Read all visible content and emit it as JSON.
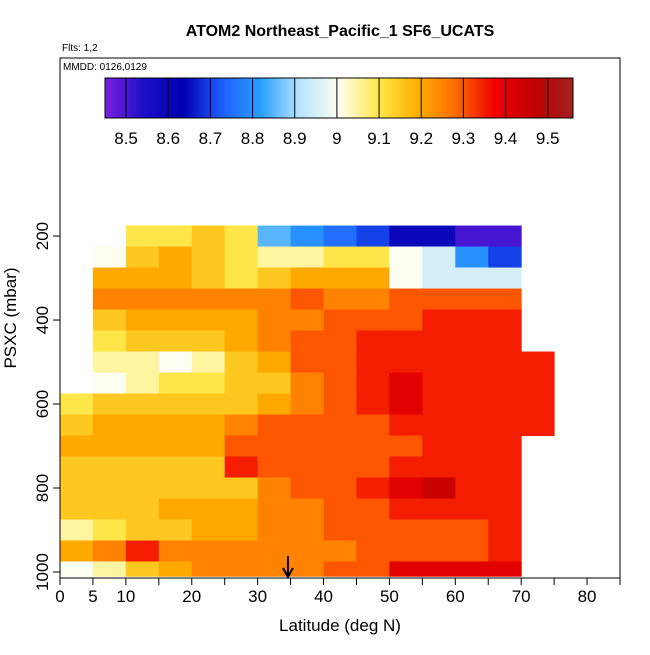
{
  "chart_data": {
    "type": "heatmap",
    "title": "ATOM2 Northeast_Pacific_1 SF6_UCATS",
    "flights": "Flts: 1,2",
    "dates": "MMDD: 0126,0129",
    "xlabel": "Latitude (deg N)",
    "ylabel": "PSXC (mbar)",
    "xlim": [
      0,
      85
    ],
    "xticks": [
      0,
      5,
      10,
      20,
      30,
      40,
      50,
      60,
      70,
      80
    ],
    "xminor_ticks": [
      15,
      25,
      35,
      45,
      55,
      65,
      75,
      85
    ],
    "ylim": [
      1014.3,
      -224
    ],
    "yticks": [
      200,
      400,
      600,
      800,
      1000
    ],
    "x_edges": [
      0,
      5,
      10,
      15,
      20,
      25,
      30,
      35,
      40,
      45,
      50,
      55,
      60,
      65,
      70,
      75
    ],
    "y_edges": [
      175,
      225,
      275,
      325,
      375,
      425,
      475,
      525,
      575,
      625,
      675,
      725,
      775,
      825,
      875,
      925,
      975,
      1010
    ],
    "z": [
      [
        null,
        null,
        9.1,
        9.1,
        9.15,
        9.1,
        8.85,
        8.8,
        8.75,
        8.7,
        8.6,
        8.6,
        8.5,
        8.5,
        null
      ],
      [
        null,
        9.0,
        9.15,
        9.2,
        9.15,
        9.1,
        9.05,
        9.05,
        9.1,
        9.1,
        9.0,
        8.95,
        8.8,
        8.7,
        null
      ],
      [
        null,
        9.2,
        9.2,
        9.2,
        9.15,
        9.1,
        9.15,
        9.2,
        9.2,
        9.2,
        9.0,
        8.95,
        8.95,
        8.95,
        null
      ],
      [
        null,
        9.25,
        9.25,
        9.25,
        9.25,
        9.25,
        9.25,
        9.3,
        9.25,
        9.25,
        9.3,
        9.3,
        9.3,
        9.3,
        null
      ],
      [
        null,
        9.15,
        9.2,
        9.2,
        9.2,
        9.2,
        9.25,
        9.25,
        9.3,
        9.3,
        9.3,
        9.35,
        9.35,
        9.35,
        null
      ],
      [
        null,
        9.1,
        9.15,
        9.15,
        9.15,
        9.2,
        9.25,
        9.3,
        9.3,
        9.35,
        9.35,
        9.35,
        9.35,
        9.35,
        null
      ],
      [
        null,
        9.05,
        9.05,
        9.0,
        9.05,
        9.15,
        9.2,
        9.3,
        9.3,
        9.35,
        9.35,
        9.35,
        9.35,
        9.35,
        9.35
      ],
      [
        null,
        9.0,
        9.05,
        9.1,
        9.1,
        9.15,
        9.15,
        9.25,
        9.3,
        9.35,
        9.4,
        9.35,
        9.35,
        9.35,
        9.35
      ],
      [
        9.1,
        9.15,
        9.15,
        9.15,
        9.15,
        9.15,
        9.2,
        9.25,
        9.3,
        9.35,
        9.4,
        9.35,
        9.35,
        9.35,
        9.35
      ],
      [
        9.15,
        9.2,
        9.2,
        9.2,
        9.2,
        9.25,
        9.3,
        9.3,
        9.3,
        9.3,
        9.35,
        9.35,
        9.35,
        9.35,
        9.35
      ],
      [
        9.2,
        9.2,
        9.2,
        9.2,
        9.2,
        9.3,
        9.3,
        9.3,
        9.3,
        9.3,
        9.3,
        9.35,
        9.35,
        9.35,
        null
      ],
      [
        9.15,
        9.15,
        9.15,
        9.15,
        9.15,
        9.35,
        9.3,
        9.3,
        9.3,
        9.3,
        9.35,
        9.35,
        9.35,
        9.35,
        null
      ],
      [
        9.15,
        9.15,
        9.15,
        9.15,
        9.15,
        9.15,
        9.25,
        9.3,
        9.3,
        9.35,
        9.4,
        9.45,
        9.35,
        9.35,
        null
      ],
      [
        9.15,
        9.15,
        9.15,
        9.2,
        9.2,
        9.2,
        9.25,
        9.25,
        9.3,
        9.3,
        9.35,
        9.35,
        9.35,
        9.35,
        null
      ],
      [
        9.05,
        9.1,
        9.15,
        9.15,
        9.2,
        9.2,
        9.25,
        9.25,
        9.3,
        9.3,
        9.3,
        9.3,
        9.3,
        9.35,
        null
      ],
      [
        9.2,
        9.25,
        9.35,
        9.25,
        9.25,
        9.25,
        9.25,
        9.25,
        9.25,
        9.3,
        9.3,
        9.3,
        9.3,
        9.35,
        null
      ],
      [
        9.0,
        9.05,
        9.15,
        9.2,
        9.25,
        9.25,
        9.25,
        9.25,
        9.3,
        9.3,
        9.4,
        9.4,
        9.4,
        9.4,
        null
      ]
    ],
    "colorbar_range": [
      8.45,
      9.56
    ],
    "colorbar_ticks": [
      8.5,
      8.6,
      8.7,
      8.8,
      8.9,
      9.0,
      9.1,
      9.2,
      9.3,
      9.4,
      9.5
    ],
    "colormap": [
      "#7b1fe0",
      "#1a0fc8",
      "#0000b0",
      "#1e5eff",
      "#2aa0ff",
      "#b8e4ff",
      "#fffff0",
      "#ffe84a",
      "#ffb000",
      "#ff6a00",
      "#f00000",
      "#c00000",
      "#a02020"
    ],
    "arrow_lat": 34.6
  }
}
